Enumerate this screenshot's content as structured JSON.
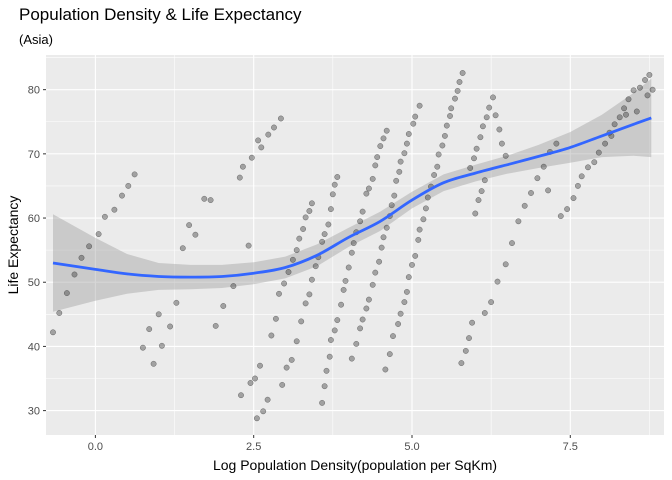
{
  "chart_data": {
    "type": "scatter",
    "title": "Population Density & Life Expectancy",
    "subtitle": "(Asia)",
    "xlabel": "Log Population Density(population per SqKm)",
    "ylabel": "Life Expectancy",
    "xlim": [
      -0.78,
      8.98
    ],
    "ylim": [
      26.2,
      85.4
    ],
    "x_ticks": [
      0.0,
      2.5,
      5.0,
      7.5
    ],
    "x_tick_labels": [
      "0.0",
      "2.5",
      "5.0",
      "7.5"
    ],
    "y_ticks": [
      30,
      40,
      50,
      60,
      70,
      80
    ],
    "y_tick_labels": [
      "30",
      "40",
      "50",
      "60",
      "70",
      "80"
    ],
    "grid": true,
    "points": [
      [
        -0.67,
        42.2
      ],
      [
        -0.57,
        45.2
      ],
      [
        -0.45,
        48.3
      ],
      [
        -0.33,
        51.2
      ],
      [
        -0.22,
        53.8
      ],
      [
        -0.1,
        55.6
      ],
      [
        0.05,
        57.5
      ],
      [
        0.15,
        60.2
      ],
      [
        0.3,
        61.3
      ],
      [
        0.42,
        63.5
      ],
      [
        0.52,
        65.0
      ],
      [
        0.62,
        66.8
      ],
      [
        0.75,
        39.8
      ],
      [
        0.85,
        42.7
      ],
      [
        0.92,
        37.3
      ],
      [
        1.0,
        45.0
      ],
      [
        1.05,
        40.1
      ],
      [
        1.18,
        43.1
      ],
      [
        1.28,
        46.8
      ],
      [
        1.38,
        55.3
      ],
      [
        1.48,
        58.9
      ],
      [
        1.58,
        57.4
      ],
      [
        1.72,
        63.0
      ],
      [
        1.82,
        62.8
      ],
      [
        1.9,
        43.2
      ],
      [
        2.02,
        46.3
      ],
      [
        2.18,
        49.4
      ],
      [
        2.28,
        66.3
      ],
      [
        2.33,
        68.0
      ],
      [
        2.42,
        55.7
      ],
      [
        2.47,
        69.4
      ],
      [
        2.57,
        72.1
      ],
      [
        2.62,
        71.0
      ],
      [
        2.73,
        73.0
      ],
      [
        2.82,
        74.1
      ],
      [
        2.93,
        75.5
      ],
      [
        2.3,
        32.4
      ],
      [
        2.45,
        34.3
      ],
      [
        2.52,
        35.0
      ],
      [
        2.6,
        37.0
      ],
      [
        2.55,
        28.8
      ],
      [
        2.65,
        29.9
      ],
      [
        2.72,
        31.7
      ],
      [
        2.78,
        41.7
      ],
      [
        2.85,
        44.3
      ],
      [
        2.9,
        48.2
      ],
      [
        2.98,
        49.8
      ],
      [
        3.05,
        51.6
      ],
      [
        3.12,
        53.5
      ],
      [
        3.18,
        55.0
      ],
      [
        3.22,
        56.8
      ],
      [
        3.28,
        58.3
      ],
      [
        3.32,
        60.1
      ],
      [
        3.38,
        61.1
      ],
      [
        3.42,
        62.3
      ],
      [
        2.95,
        34.0
      ],
      [
        3.02,
        36.7
      ],
      [
        3.1,
        37.9
      ],
      [
        3.18,
        40.8
      ],
      [
        3.25,
        43.9
      ],
      [
        3.32,
        46.7
      ],
      [
        3.38,
        48.1
      ],
      [
        3.42,
        50.4
      ],
      [
        3.48,
        52.5
      ],
      [
        3.52,
        53.9
      ],
      [
        3.58,
        56.3
      ],
      [
        3.62,
        57.5
      ],
      [
        3.68,
        59.0
      ],
      [
        3.72,
        61.4
      ],
      [
        3.75,
        63.7
      ],
      [
        3.78,
        65.2
      ],
      [
        3.82,
        66.4
      ],
      [
        3.58,
        31.2
      ],
      [
        3.62,
        33.8
      ],
      [
        3.65,
        36.2
      ],
      [
        3.7,
        38.4
      ],
      [
        3.72,
        41.0
      ],
      [
        3.78,
        42.5
      ],
      [
        3.82,
        44.1
      ],
      [
        3.88,
        46.5
      ],
      [
        3.92,
        48.8
      ],
      [
        3.95,
        50.2
      ],
      [
        4.0,
        52.3
      ],
      [
        4.05,
        54.6
      ],
      [
        4.08,
        56.1
      ],
      [
        4.12,
        57.8
      ],
      [
        4.18,
        59.5
      ],
      [
        4.22,
        61.0
      ],
      [
        4.28,
        63.8
      ],
      [
        4.32,
        64.6
      ],
      [
        4.38,
        66.1
      ],
      [
        4.42,
        68.2
      ],
      [
        4.45,
        69.5
      ],
      [
        4.5,
        71.2
      ],
      [
        4.55,
        72.4
      ],
      [
        4.6,
        73.6
      ],
      [
        4.05,
        38.1
      ],
      [
        4.12,
        40.4
      ],
      [
        4.18,
        42.8
      ],
      [
        4.22,
        44.2
      ],
      [
        4.28,
        45.9
      ],
      [
        4.32,
        47.3
      ],
      [
        4.38,
        49.6
      ],
      [
        4.42,
        51.5
      ],
      [
        4.48,
        53.2
      ],
      [
        4.52,
        55.4
      ],
      [
        4.55,
        57.0
      ],
      [
        4.6,
        58.5
      ],
      [
        4.65,
        60.3
      ],
      [
        4.68,
        62.0
      ],
      [
        4.72,
        63.5
      ],
      [
        4.75,
        65.8
      ],
      [
        4.8,
        67.2
      ],
      [
        4.82,
        68.8
      ],
      [
        4.88,
        70.1
      ],
      [
        4.92,
        71.6
      ],
      [
        4.95,
        73.1
      ],
      [
        5.02,
        74.7
      ],
      [
        5.05,
        75.8
      ],
      [
        5.12,
        77.5
      ],
      [
        4.58,
        36.4
      ],
      [
        4.65,
        38.8
      ],
      [
        4.7,
        41.6
      ],
      [
        4.78,
        43.5
      ],
      [
        4.82,
        45.1
      ],
      [
        4.88,
        46.9
      ],
      [
        4.92,
        48.5
      ],
      [
        4.95,
        50.8
      ],
      [
        5.0,
        52.7
      ],
      [
        5.05,
        54.1
      ],
      [
        5.1,
        56.6
      ],
      [
        5.12,
        58.2
      ],
      [
        5.18,
        59.8
      ],
      [
        5.22,
        61.5
      ],
      [
        5.25,
        63.2
      ],
      [
        5.3,
        64.9
      ],
      [
        5.35,
        66.7
      ],
      [
        5.4,
        68.0
      ],
      [
        5.42,
        69.9
      ],
      [
        5.48,
        71.3
      ],
      [
        5.52,
        72.8
      ],
      [
        5.55,
        74.4
      ],
      [
        5.6,
        75.9
      ],
      [
        5.62,
        77.1
      ],
      [
        5.68,
        78.6
      ],
      [
        5.72,
        79.8
      ],
      [
        5.75,
        81.2
      ],
      [
        5.8,
        82.6
      ],
      [
        5.78,
        37.4
      ],
      [
        5.85,
        39.3
      ],
      [
        5.9,
        41.3
      ],
      [
        5.95,
        43.7
      ],
      [
        6.0,
        60.7
      ],
      [
        6.05,
        62.8
      ],
      [
        6.1,
        64.2
      ],
      [
        6.15,
        65.9
      ],
      [
        5.92,
        67.8
      ],
      [
        5.98,
        69.3
      ],
      [
        6.02,
        70.8
      ],
      [
        6.08,
        72.6
      ],
      [
        6.12,
        74.3
      ],
      [
        6.18,
        75.7
      ],
      [
        6.22,
        77.2
      ],
      [
        6.28,
        78.8
      ],
      [
        6.32,
        76.0
      ],
      [
        6.38,
        73.8
      ],
      [
        6.42,
        71.6
      ],
      [
        6.48,
        69.7
      ],
      [
        6.15,
        45.2
      ],
      [
        6.25,
        46.9
      ],
      [
        6.35,
        50.1
      ],
      [
        6.48,
        52.8
      ],
      [
        6.58,
        56.1
      ],
      [
        6.68,
        59.5
      ],
      [
        6.78,
        61.9
      ],
      [
        6.88,
        63.9
      ],
      [
        6.98,
        66.2
      ],
      [
        7.08,
        68.0
      ],
      [
        7.18,
        70.3
      ],
      [
        7.28,
        71.6
      ],
      [
        7.15,
        64.3
      ],
      [
        7.35,
        60.3
      ],
      [
        7.45,
        61.4
      ],
      [
        7.55,
        63.1
      ],
      [
        7.62,
        65.0
      ],
      [
        7.68,
        66.5
      ],
      [
        7.78,
        67.9
      ],
      [
        7.88,
        68.7
      ],
      [
        7.95,
        70.2
      ],
      [
        8.05,
        71.6
      ],
      [
        8.12,
        73.3
      ],
      [
        8.2,
        74.6
      ],
      [
        8.28,
        75.7
      ],
      [
        8.35,
        77.1
      ],
      [
        8.42,
        78.5
      ],
      [
        8.5,
        79.9
      ],
      [
        8.55,
        76.6
      ],
      [
        8.6,
        80.3
      ],
      [
        8.68,
        81.5
      ],
      [
        8.75,
        82.3
      ],
      [
        8.72,
        79.1
      ],
      [
        8.8,
        80.0
      ],
      [
        8.38,
        76.1
      ],
      [
        8.15,
        72.8
      ]
    ],
    "smooth_line": [
      [
        -0.67,
        53.0
      ],
      [
        0.0,
        52.0
      ],
      [
        0.5,
        51.3
      ],
      [
        1.0,
        50.9
      ],
      [
        1.5,
        50.8
      ],
      [
        2.0,
        50.9
      ],
      [
        2.5,
        51.4
      ],
      [
        3.0,
        52.3
      ],
      [
        3.5,
        54.2
      ],
      [
        4.0,
        57.0
      ],
      [
        4.5,
        59.5
      ],
      [
        5.0,
        62.8
      ],
      [
        5.5,
        65.5
      ],
      [
        6.0,
        67.0
      ],
      [
        6.5,
        68.3
      ],
      [
        7.0,
        69.6
      ],
      [
        7.5,
        71.0
      ],
      [
        8.0,
        72.8
      ],
      [
        8.5,
        74.6
      ],
      [
        8.78,
        75.6
      ]
    ],
    "band_upper": [
      [
        -0.67,
        60.6
      ],
      [
        0.0,
        56.9
      ],
      [
        0.5,
        54.4
      ],
      [
        1.0,
        53.0
      ],
      [
        1.5,
        52.7
      ],
      [
        2.0,
        52.7
      ],
      [
        2.5,
        53.1
      ],
      [
        3.0,
        54.0
      ],
      [
        3.5,
        55.9
      ],
      [
        4.0,
        58.5
      ],
      [
        4.5,
        61.0
      ],
      [
        5.0,
        64.1
      ],
      [
        5.5,
        66.8
      ],
      [
        6.0,
        68.3
      ],
      [
        6.5,
        69.7
      ],
      [
        7.0,
        71.4
      ],
      [
        7.5,
        73.4
      ],
      [
        8.0,
        76.1
      ],
      [
        8.5,
        79.5
      ],
      [
        8.78,
        81.7
      ]
    ],
    "band_lower": [
      [
        -0.67,
        45.4
      ],
      [
        0.0,
        47.1
      ],
      [
        0.5,
        48.2
      ],
      [
        1.0,
        48.8
      ],
      [
        1.5,
        48.9
      ],
      [
        2.0,
        49.1
      ],
      [
        2.5,
        49.7
      ],
      [
        3.0,
        50.6
      ],
      [
        3.5,
        52.5
      ],
      [
        4.0,
        55.5
      ],
      [
        4.5,
        58.0
      ],
      [
        5.0,
        61.5
      ],
      [
        5.5,
        64.2
      ],
      [
        6.0,
        65.7
      ],
      [
        6.5,
        66.9
      ],
      [
        7.0,
        67.8
      ],
      [
        7.5,
        68.6
      ],
      [
        8.0,
        69.5
      ],
      [
        8.5,
        69.7
      ],
      [
        8.78,
        69.5
      ]
    ],
    "colors": {
      "panel": "#ebebeb",
      "grid_major": "#ffffff",
      "points_fill": "#333333",
      "line": "#3366ff",
      "band": "#999999"
    }
  }
}
